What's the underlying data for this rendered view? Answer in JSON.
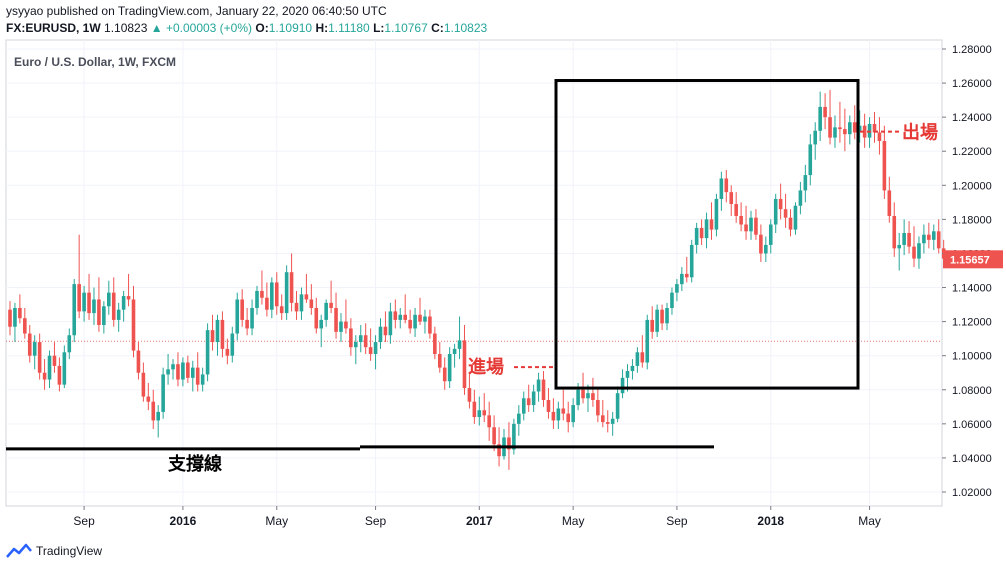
{
  "header": {
    "published_line": "ysyyao published on TradingView.com, January 22, 2020 06:40:50 UTC",
    "symbol": "FX:EURUSD, 1W",
    "last": "1.10823",
    "change": "▲ +0.00003 (+0%)",
    "o_label": "O:",
    "o": "1.10910",
    "h_label": "H:",
    "h": "1.11180",
    "l_label": "L:",
    "l": "1.10767",
    "c_label": "C:",
    "c": "1.10823"
  },
  "chart_data": {
    "type": "candlestick",
    "title": "Euro / U.S. Dollar, 1W, FXCM",
    "y_ticks": [
      "1.02000",
      "1.04000",
      "1.06000",
      "1.08000",
      "1.10000",
      "1.12000",
      "1.14000",
      "1.16000",
      "1.18000",
      "1.20000",
      "1.22000",
      "1.24000",
      "1.26000",
      "1.28000"
    ],
    "ylim": [
      1.01,
      1.285
    ],
    "x_ticks": [
      "Sep",
      "2016",
      "May",
      "Sep",
      "2017",
      "May",
      "Sep",
      "2018",
      "May"
    ],
    "x_ticks_bold": [
      "2016",
      "2017",
      "2018"
    ],
    "current_price_label": "1.15657",
    "current_price": 1.15657,
    "reference_line": 1.1085,
    "support_level": 1.0465,
    "annotations": {
      "entry": "進場",
      "exit": "出場",
      "support": "支撐線"
    },
    "highlight_box": {
      "start_week": 125,
      "end_week": 173,
      "price_low": 1.081,
      "price_high": 1.2615
    },
    "candles_ohlc": [
      [
        1.127,
        1.132,
        1.112,
        1.117
      ],
      [
        1.117,
        1.131,
        1.108,
        1.128
      ],
      [
        1.128,
        1.136,
        1.119,
        1.122
      ],
      [
        1.122,
        1.128,
        1.11,
        1.113
      ],
      [
        1.113,
        1.118,
        1.096,
        1.1
      ],
      [
        1.1,
        1.112,
        1.092,
        1.108
      ],
      [
        1.108,
        1.113,
        1.086,
        1.09
      ],
      [
        1.09,
        1.098,
        1.08,
        1.086
      ],
      [
        1.086,
        1.103,
        1.081,
        1.1
      ],
      [
        1.1,
        1.108,
        1.09,
        1.094
      ],
      [
        1.094,
        1.099,
        1.079,
        1.083
      ],
      [
        1.083,
        1.106,
        1.081,
        1.102
      ],
      [
        1.102,
        1.116,
        1.098,
        1.112
      ],
      [
        1.112,
        1.145,
        1.108,
        1.142
      ],
      [
        1.142,
        1.171,
        1.122,
        1.126
      ],
      [
        1.126,
        1.141,
        1.12,
        1.137
      ],
      [
        1.137,
        1.148,
        1.121,
        1.125
      ],
      [
        1.125,
        1.14,
        1.118,
        1.133
      ],
      [
        1.133,
        1.146,
        1.114,
        1.118
      ],
      [
        1.118,
        1.132,
        1.113,
        1.129
      ],
      [
        1.129,
        1.144,
        1.124,
        1.137
      ],
      [
        1.137,
        1.146,
        1.117,
        1.121
      ],
      [
        1.121,
        1.131,
        1.114,
        1.127
      ],
      [
        1.127,
        1.138,
        1.12,
        1.135
      ],
      [
        1.135,
        1.148,
        1.129,
        1.133
      ],
      [
        1.133,
        1.141,
        1.099,
        1.103
      ],
      [
        1.103,
        1.108,
        1.086,
        1.09
      ],
      [
        1.09,
        1.096,
        1.073,
        1.076
      ],
      [
        1.076,
        1.084,
        1.068,
        1.073
      ],
      [
        1.073,
        1.08,
        1.057,
        1.062
      ],
      [
        1.062,
        1.071,
        1.052,
        1.067
      ],
      [
        1.067,
        1.093,
        1.063,
        1.089
      ],
      [
        1.089,
        1.101,
        1.083,
        1.092
      ],
      [
        1.092,
        1.098,
        1.086,
        1.095
      ],
      [
        1.095,
        1.102,
        1.082,
        1.086
      ],
      [
        1.086,
        1.099,
        1.082,
        1.096
      ],
      [
        1.096,
        1.1,
        1.084,
        1.087
      ],
      [
        1.087,
        1.097,
        1.079,
        1.093
      ],
      [
        1.093,
        1.102,
        1.079,
        1.083
      ],
      [
        1.083,
        1.093,
        1.079,
        1.089
      ],
      [
        1.089,
        1.119,
        1.085,
        1.115
      ],
      [
        1.115,
        1.124,
        1.103,
        1.108
      ],
      [
        1.108,
        1.124,
        1.1,
        1.121
      ],
      [
        1.121,
        1.126,
        1.099,
        1.104
      ],
      [
        1.104,
        1.11,
        1.095,
        1.1
      ],
      [
        1.1,
        1.117,
        1.096,
        1.113
      ],
      [
        1.113,
        1.137,
        1.109,
        1.133
      ],
      [
        1.133,
        1.139,
        1.117,
        1.121
      ],
      [
        1.121,
        1.128,
        1.112,
        1.116
      ],
      [
        1.116,
        1.133,
        1.112,
        1.128
      ],
      [
        1.128,
        1.141,
        1.124,
        1.138
      ],
      [
        1.138,
        1.15,
        1.13,
        1.134
      ],
      [
        1.134,
        1.143,
        1.123,
        1.127
      ],
      [
        1.127,
        1.146,
        1.122,
        1.143
      ],
      [
        1.143,
        1.149,
        1.124,
        1.129
      ],
      [
        1.129,
        1.136,
        1.121,
        1.125
      ],
      [
        1.125,
        1.153,
        1.121,
        1.149
      ],
      [
        1.149,
        1.16,
        1.126,
        1.131
      ],
      [
        1.131,
        1.138,
        1.121,
        1.126
      ],
      [
        1.126,
        1.14,
        1.121,
        1.136
      ],
      [
        1.136,
        1.148,
        1.131,
        1.133
      ],
      [
        1.133,
        1.142,
        1.124,
        1.128
      ],
      [
        1.128,
        1.134,
        1.113,
        1.116
      ],
      [
        1.116,
        1.124,
        1.105,
        1.121
      ],
      [
        1.121,
        1.133,
        1.117,
        1.131
      ],
      [
        1.131,
        1.144,
        1.125,
        1.128
      ],
      [
        1.128,
        1.137,
        1.11,
        1.114
      ],
      [
        1.114,
        1.125,
        1.108,
        1.12
      ],
      [
        1.12,
        1.133,
        1.113,
        1.116
      ],
      [
        1.116,
        1.122,
        1.1,
        1.105
      ],
      [
        1.105,
        1.112,
        1.095,
        1.108
      ],
      [
        1.108,
        1.118,
        1.102,
        1.112
      ],
      [
        1.112,
        1.119,
        1.101,
        1.105
      ],
      [
        1.105,
        1.116,
        1.097,
        1.101
      ],
      [
        1.101,
        1.112,
        1.092,
        1.108
      ],
      [
        1.108,
        1.122,
        1.104,
        1.117
      ],
      [
        1.117,
        1.126,
        1.108,
        1.112
      ],
      [
        1.112,
        1.131,
        1.107,
        1.126
      ],
      [
        1.126,
        1.133,
        1.116,
        1.121
      ],
      [
        1.121,
        1.128,
        1.116,
        1.124
      ],
      [
        1.124,
        1.136,
        1.119,
        1.121
      ],
      [
        1.121,
        1.127,
        1.113,
        1.116
      ],
      [
        1.116,
        1.128,
        1.111,
        1.124
      ],
      [
        1.124,
        1.134,
        1.118,
        1.12
      ],
      [
        1.12,
        1.127,
        1.113,
        1.123
      ],
      [
        1.123,
        1.127,
        1.11,
        1.113
      ],
      [
        1.113,
        1.117,
        1.098,
        1.101
      ],
      [
        1.101,
        1.108,
        1.09,
        1.093
      ],
      [
        1.093,
        1.099,
        1.08,
        1.085
      ],
      [
        1.085,
        1.105,
        1.081,
        1.101
      ],
      [
        1.101,
        1.107,
        1.093,
        1.104
      ],
      [
        1.104,
        1.123,
        1.098,
        1.109
      ],
      [
        1.109,
        1.118,
        1.077,
        1.081
      ],
      [
        1.081,
        1.089,
        1.069,
        1.073
      ],
      [
        1.073,
        1.08,
        1.06,
        1.064
      ],
      [
        1.064,
        1.076,
        1.059,
        1.068
      ],
      [
        1.068,
        1.078,
        1.061,
        1.065
      ],
      [
        1.065,
        1.073,
        1.05,
        1.058
      ],
      [
        1.058,
        1.065,
        1.044,
        1.048
      ],
      [
        1.048,
        1.058,
        1.035,
        1.041
      ],
      [
        1.041,
        1.057,
        1.039,
        1.052
      ],
      [
        1.052,
        1.061,
        1.033,
        1.045
      ],
      [
        1.045,
        1.063,
        1.042,
        1.06
      ],
      [
        1.06,
        1.071,
        1.053,
        1.066
      ],
      [
        1.066,
        1.079,
        1.062,
        1.075
      ],
      [
        1.075,
        1.083,
        1.067,
        1.071
      ],
      [
        1.071,
        1.083,
        1.067,
        1.079
      ],
      [
        1.079,
        1.09,
        1.073,
        1.086
      ],
      [
        1.086,
        1.091,
        1.07,
        1.074
      ],
      [
        1.074,
        1.081,
        1.063,
        1.067
      ],
      [
        1.067,
        1.075,
        1.057,
        1.062
      ],
      [
        1.062,
        1.073,
        1.057,
        1.069
      ],
      [
        1.069,
        1.08,
        1.062,
        1.066
      ],
      [
        1.066,
        1.073,
        1.055,
        1.061
      ],
      [
        1.061,
        1.075,
        1.058,
        1.071
      ],
      [
        1.071,
        1.084,
        1.068,
        1.08
      ],
      [
        1.08,
        1.09,
        1.072,
        1.075
      ],
      [
        1.075,
        1.083,
        1.067,
        1.078
      ],
      [
        1.078,
        1.087,
        1.07,
        1.074
      ],
      [
        1.074,
        1.081,
        1.061,
        1.065
      ],
      [
        1.065,
        1.074,
        1.058,
        1.061
      ],
      [
        1.061,
        1.068,
        1.055,
        1.06
      ],
      [
        1.06,
        1.067,
        1.053,
        1.063
      ],
      [
        1.063,
        1.082,
        1.061,
        1.078
      ],
      [
        1.078,
        1.092,
        1.075,
        1.087
      ],
      [
        1.087,
        1.095,
        1.079,
        1.091
      ],
      [
        1.091,
        1.098,
        1.086,
        1.094
      ],
      [
        1.094,
        1.105,
        1.09,
        1.102
      ],
      [
        1.102,
        1.112,
        1.093,
        1.096
      ],
      [
        1.096,
        1.124,
        1.092,
        1.121
      ],
      [
        1.121,
        1.129,
        1.11,
        1.114
      ],
      [
        1.114,
        1.13,
        1.111,
        1.127
      ],
      [
        1.127,
        1.13,
        1.115,
        1.119
      ],
      [
        1.119,
        1.131,
        1.115,
        1.128
      ],
      [
        1.128,
        1.14,
        1.124,
        1.137
      ],
      [
        1.137,
        1.145,
        1.132,
        1.142
      ],
      [
        1.142,
        1.152,
        1.138,
        1.148
      ],
      [
        1.148,
        1.158,
        1.143,
        1.146
      ],
      [
        1.146,
        1.168,
        1.143,
        1.165
      ],
      [
        1.165,
        1.178,
        1.16,
        1.175
      ],
      [
        1.175,
        1.18,
        1.165,
        1.169
      ],
      [
        1.169,
        1.184,
        1.163,
        1.18
      ],
      [
        1.18,
        1.19,
        1.168,
        1.174
      ],
      [
        1.174,
        1.195,
        1.17,
        1.192
      ],
      [
        1.192,
        1.208,
        1.185,
        1.204
      ],
      [
        1.204,
        1.209,
        1.19,
        1.196
      ],
      [
        1.196,
        1.2,
        1.182,
        1.189
      ],
      [
        1.189,
        1.196,
        1.178,
        1.182
      ],
      [
        1.182,
        1.19,
        1.173,
        1.177
      ],
      [
        1.177,
        1.188,
        1.168,
        1.173
      ],
      [
        1.173,
        1.185,
        1.168,
        1.181
      ],
      [
        1.181,
        1.186,
        1.168,
        1.171
      ],
      [
        1.171,
        1.177,
        1.155,
        1.16
      ],
      [
        1.16,
        1.17,
        1.155,
        1.165
      ],
      [
        1.165,
        1.18,
        1.16,
        1.177
      ],
      [
        1.177,
        1.195,
        1.172,
        1.192
      ],
      [
        1.192,
        1.201,
        1.18,
        1.186
      ],
      [
        1.186,
        1.195,
        1.175,
        1.181
      ],
      [
        1.181,
        1.186,
        1.17,
        1.174
      ],
      [
        1.174,
        1.19,
        1.171,
        1.188
      ],
      [
        1.188,
        1.202,
        1.183,
        1.197
      ],
      [
        1.197,
        1.212,
        1.19,
        1.206
      ],
      [
        1.206,
        1.23,
        1.2,
        1.224
      ],
      [
        1.224,
        1.237,
        1.215,
        1.232
      ],
      [
        1.232,
        1.255,
        1.226,
        1.246
      ],
      [
        1.246,
        1.254,
        1.233,
        1.24
      ],
      [
        1.24,
        1.256,
        1.224,
        1.228
      ],
      [
        1.228,
        1.241,
        1.222,
        1.234
      ],
      [
        1.234,
        1.249,
        1.225,
        1.233
      ],
      [
        1.233,
        1.245,
        1.22,
        1.23
      ],
      [
        1.23,
        1.241,
        1.224,
        1.237
      ],
      [
        1.237,
        1.247,
        1.227,
        1.231
      ],
      [
        1.231,
        1.244,
        1.225,
        1.235
      ],
      [
        1.235,
        1.242,
        1.222,
        1.228
      ],
      [
        1.228,
        1.24,
        1.222,
        1.236
      ],
      [
        1.236,
        1.243,
        1.225,
        1.231
      ],
      [
        1.231,
        1.24,
        1.218,
        1.226
      ],
      [
        1.226,
        1.235,
        1.192,
        1.197
      ],
      [
        1.197,
        1.205,
        1.178,
        1.182
      ],
      [
        1.182,
        1.19,
        1.158,
        1.163
      ],
      [
        1.163,
        1.172,
        1.15,
        1.165
      ],
      [
        1.165,
        1.18,
        1.159,
        1.172
      ],
      [
        1.172,
        1.179,
        1.16,
        1.164
      ],
      [
        1.164,
        1.176,
        1.152,
        1.157
      ],
      [
        1.157,
        1.17,
        1.151,
        1.166
      ],
      [
        1.166,
        1.177,
        1.16,
        1.171
      ],
      [
        1.171,
        1.178,
        1.163,
        1.168
      ],
      [
        1.168,
        1.177,
        1.162,
        1.173
      ],
      [
        1.173,
        1.18,
        1.16,
        1.163
      ],
      [
        1.163,
        1.168,
        1.153,
        1.157
      ]
    ]
  },
  "footer": {
    "brand": "TradingView"
  }
}
